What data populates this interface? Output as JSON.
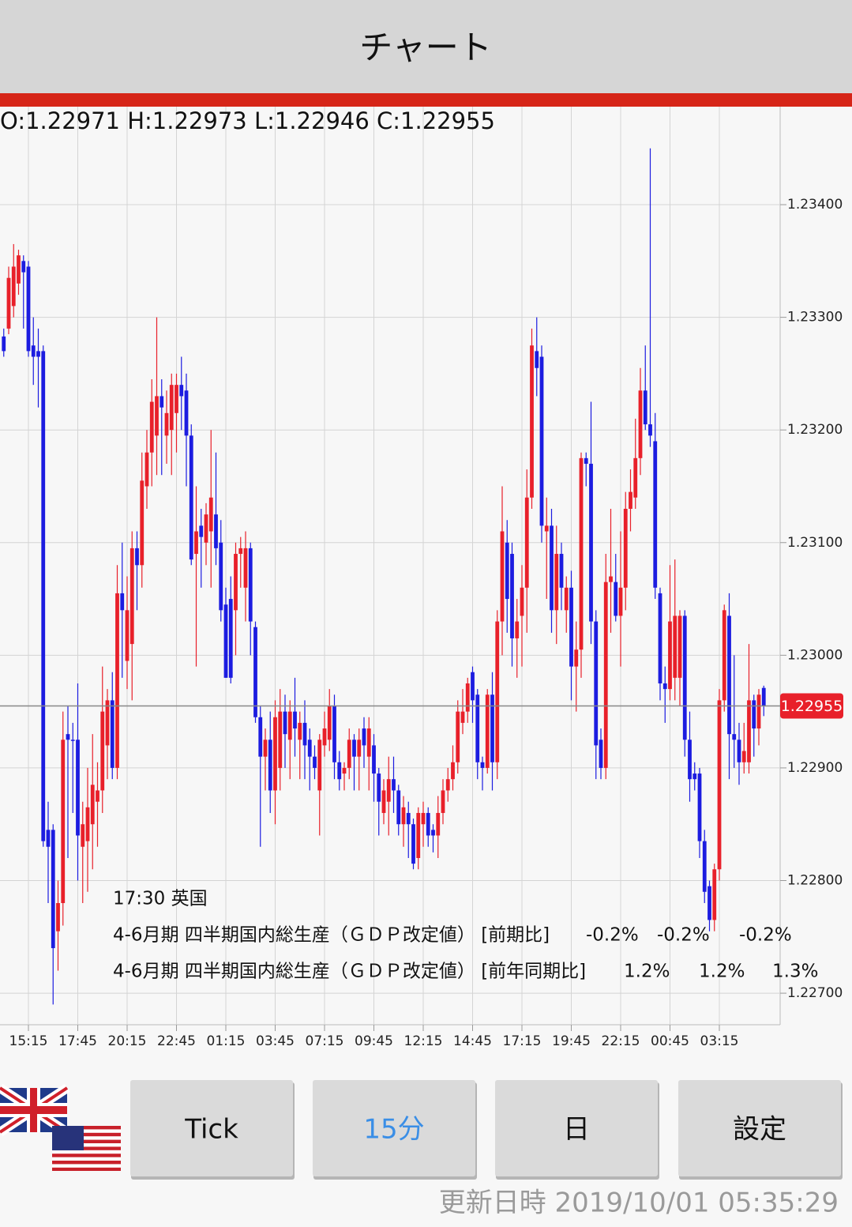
{
  "header": {
    "title": "チャート",
    "ohlc_label": "O:1.22971 H:1.22973 L:1.22946 C:1.22955"
  },
  "chart_data": {
    "type": "candlestick",
    "up_color": "#e8202a",
    "down_color": "#1c1ce0",
    "grid": true,
    "ylim": [
      1.22672,
      1.23487
    ],
    "yticks": [
      {
        "value": 1.227,
        "label": "1.22700"
      },
      {
        "value": 1.228,
        "label": "1.22800"
      },
      {
        "value": 1.229,
        "label": "1.22900"
      },
      {
        "value": 1.23,
        "label": "1.23000"
      },
      {
        "value": 1.231,
        "label": "1.23100"
      },
      {
        "value": 1.232,
        "label": "1.23200"
      },
      {
        "value": 1.233,
        "label": "1.23300"
      },
      {
        "value": 1.234,
        "label": "1.23400"
      }
    ],
    "current_price": 1.22955,
    "categories": [
      null,
      null,
      null,
      null,
      null,
      "15:15",
      null,
      null,
      null,
      null,
      null,
      null,
      null,
      null,
      null,
      "17:45",
      null,
      null,
      null,
      null,
      null,
      null,
      null,
      null,
      null,
      "20:15",
      null,
      null,
      null,
      null,
      null,
      null,
      null,
      null,
      null,
      "22:45",
      null,
      null,
      null,
      null,
      null,
      null,
      null,
      null,
      null,
      "01:15",
      null,
      null,
      null,
      null,
      null,
      null,
      null,
      null,
      null,
      "03:45",
      null,
      null,
      null,
      null,
      null,
      null,
      null,
      null,
      null,
      "07:15",
      null,
      null,
      null,
      null,
      null,
      null,
      null,
      null,
      null,
      "09:45",
      null,
      null,
      null,
      null,
      null,
      null,
      null,
      null,
      null,
      "12:15",
      null,
      null,
      null,
      null,
      null,
      null,
      null,
      null,
      null,
      "14:45",
      null,
      null,
      null,
      null,
      null,
      null,
      null,
      null,
      null,
      "17:15",
      null,
      null,
      null,
      null,
      null,
      null,
      null,
      null,
      null,
      "19:45",
      null,
      null,
      null,
      null,
      null,
      null,
      null,
      null,
      null,
      "22:15",
      null,
      null,
      null,
      null,
      null,
      null,
      null,
      null,
      null,
      "00:45",
      null,
      null,
      null,
      null,
      null,
      null,
      null,
      null,
      null,
      "03:15",
      null,
      null,
      null,
      null,
      null,
      null,
      null,
      null,
      null
    ],
    "open": [
      1.23283,
      1.2329,
      1.2331,
      1.2333,
      1.2335,
      1.23345,
      1.23275,
      1.2327,
      1.2327,
      1.22845,
      1.22845,
      1.22755,
      1.2278,
      1.2293,
      1.22925,
      1.22925,
      1.2283,
      1.22835,
      1.2285,
      1.2287,
      1.2288,
      1.2292,
      1.2296,
      1.229,
      1.23055,
      1.22995,
      1.2301,
      1.23095,
      1.2308,
      1.2315,
      1.2318,
      1.23195,
      1.2323,
      1.23195,
      1.232,
      1.23215,
      1.2324,
      1.23235,
      1.23195,
      1.2309,
      1.23115,
      1.231,
      1.2311,
      1.23125,
      1.231,
      1.23045,
      1.2305,
      1.2304,
      1.2309,
      1.2306,
      1.23095,
      1.23025,
      1.22945,
      1.2291,
      1.22925,
      1.2288,
      1.229,
      1.2295,
      1.22925,
      1.2295,
      1.22925,
      1.2294,
      1.22925,
      1.2291,
      1.2288,
      1.2292,
      1.22925,
      1.22955,
      1.22905,
      1.22895,
      1.229,
      1.22925,
      1.2291,
      1.22935,
      1.2291,
      1.2292,
      1.22895,
      1.2286,
      1.2287,
      1.2289,
      1.2288,
      1.2285,
      1.2286,
      1.2285,
      1.2282,
      1.2285,
      1.2286,
      1.22845,
      1.2284,
      1.2286,
      1.2288,
      1.2289,
      1.22905,
      1.2294,
      1.2295,
      1.22985,
      1.22965,
      1.22905,
      1.229,
      1.22965,
      1.22905,
      1.2303,
      1.231,
      1.2309,
      1.23015,
      1.23035,
      1.2306,
      1.2314,
      1.2327,
      1.23265,
      1.2311,
      1.23115,
      1.2304,
      1.2309,
      1.2304,
      1.2306,
      1.2299,
      1.23005,
      1.23175,
      1.2317,
      1.2303,
      1.22925,
      1.229,
      1.23065,
      1.23065,
      1.23035,
      1.2306,
      1.2313,
      1.2314,
      1.23175,
      1.23235,
      1.23205,
      1.2319,
      1.23055,
      1.22975,
      1.2297,
      1.2298,
      1.2298,
      1.23035,
      1.22925,
      1.22895,
      1.22895,
      1.22835,
      1.22795,
      1.22765,
      1.2281,
      1.2296,
      1.23035,
      1.2293,
      1.22925,
      1.22905,
      1.22905,
      1.2296,
      1.22935,
      1.22971
    ],
    "high": [
      1.2329,
      1.23345,
      1.23365,
      1.2336,
      1.23355,
      1.2335,
      1.233,
      1.2329,
      1.23275,
      1.2287,
      1.2285,
      1.228,
      1.2295,
      1.22955,
      1.2294,
      1.22975,
      1.2287,
      1.229,
      1.2293,
      1.22905,
      1.2299,
      1.2297,
      1.22985,
      1.2308,
      1.231,
      1.2307,
      1.2311,
      1.2311,
      1.2318,
      1.232,
      1.23245,
      1.233,
      1.23245,
      1.23235,
      1.2325,
      1.2325,
      1.23265,
      1.2325,
      1.23205,
      1.2315,
      1.2313,
      1.23135,
      1.232,
      1.2318,
      1.2312,
      1.2306,
      1.2307,
      1.231,
      1.23105,
      1.2311,
      1.231,
      1.2303,
      1.22955,
      1.22935,
      1.2295,
      1.2296,
      1.2297,
      1.22965,
      1.2296,
      1.2298,
      1.2295,
      1.2296,
      1.22935,
      1.2292,
      1.2293,
      1.2295,
      1.2297,
      1.22965,
      1.22915,
      1.22905,
      1.22935,
      1.2293,
      1.22935,
      1.22945,
      1.22945,
      1.2293,
      1.229,
      1.2289,
      1.2291,
      1.2291,
      1.22885,
      1.22875,
      1.2287,
      1.22855,
      1.22865,
      1.2287,
      1.22865,
      1.2285,
      1.22875,
      1.2289,
      1.229,
      1.2292,
      1.2296,
      1.2297,
      1.2298,
      1.2299,
      1.2297,
      1.2291,
      1.2297,
      1.22985,
      1.2304,
      1.2315,
      1.2312,
      1.231,
      1.2305,
      1.2308,
      1.23165,
      1.2329,
      1.233,
      1.23275,
      1.2314,
      1.2313,
      1.23115,
      1.231,
      1.2307,
      1.23075,
      1.2303,
      1.2318,
      1.2318,
      1.23225,
      1.2304,
      1.22935,
      1.2309,
      1.2313,
      1.2309,
      1.2311,
      1.23145,
      1.23165,
      1.2321,
      1.23255,
      1.23275,
      1.2345,
      1.23215,
      1.2306,
      1.2299,
      1.2308,
      1.23085,
      1.2304,
      1.2304,
      1.2295,
      1.22905,
      1.229,
      1.22845,
      1.228,
      1.22815,
      1.2297,
      1.23045,
      1.23055,
      1.23,
      1.2294,
      1.2294,
      1.2301,
      1.22965,
      1.2297,
      1.22973
    ],
    "low": [
      1.23265,
      1.23285,
      1.233,
      1.2332,
      1.2329,
      1.23265,
      1.2324,
      1.2322,
      1.2283,
      1.2278,
      1.2269,
      1.2272,
      1.2276,
      1.2282,
      1.2286,
      1.228,
      1.2278,
      1.2279,
      1.2281,
      1.2283,
      1.2286,
      1.2289,
      1.2289,
      1.2289,
      1.2298,
      1.2297,
      1.2296,
      1.2304,
      1.2306,
      1.2313,
      1.2315,
      1.2316,
      1.2316,
      1.2317,
      1.2316,
      1.2318,
      1.232,
      1.2315,
      1.2308,
      1.2299,
      1.2306,
      1.2308,
      1.2306,
      1.2308,
      1.2303,
      1.2298,
      1.22975,
      1.23,
      1.2306,
      1.2303,
      1.23,
      1.2294,
      1.2283,
      1.2288,
      1.2286,
      1.2285,
      1.2288,
      1.229,
      1.2289,
      1.2291,
      1.2289,
      1.2289,
      1.2288,
      1.2289,
      1.2284,
      1.2291,
      1.22915,
      1.2289,
      1.2288,
      1.2288,
      1.2289,
      1.2288,
      1.2288,
      1.229,
      1.2288,
      1.2287,
      1.2284,
      1.2285,
      1.2284,
      1.2286,
      1.2284,
      1.2283,
      1.2282,
      1.2281,
      1.2281,
      1.2283,
      1.2283,
      1.22825,
      1.2282,
      1.2285,
      1.2287,
      1.2288,
      1.22895,
      1.2293,
      1.2294,
      1.2294,
      1.2289,
      1.2288,
      1.22895,
      1.2288,
      1.2289,
      1.23,
      1.2302,
      1.2299,
      1.2298,
      1.2299,
      1.2302,
      1.2313,
      1.2323,
      1.231,
      1.2305,
      1.2302,
      1.2301,
      1.2304,
      1.2302,
      1.2296,
      1.2295,
      1.2298,
      1.2315,
      1.2301,
      1.2289,
      1.2289,
      1.2289,
      1.2302,
      1.2303,
      1.2299,
      1.2304,
      1.2311,
      1.2313,
      1.2316,
      1.232,
      1.23185,
      1.2305,
      1.2296,
      1.2294,
      1.2296,
      1.2296,
      1.22955,
      1.2291,
      1.2287,
      1.2288,
      1.2282,
      1.2278,
      1.22755,
      1.22755,
      1.228,
      1.2295,
      1.2289,
      1.229,
      1.22885,
      1.22895,
      1.22895,
      1.2291,
      1.2292,
      1.22946
    ],
    "close": [
      1.2327,
      1.23335,
      1.23345,
      1.23355,
      1.2334,
      1.2327,
      1.23265,
      1.23265,
      1.22835,
      1.2283,
      1.2274,
      1.2278,
      1.22925,
      1.22925,
      1.22925,
      1.2284,
      1.2285,
      1.22865,
      1.22885,
      1.2288,
      1.2295,
      1.2296,
      1.229,
      1.23055,
      1.2304,
      1.2304,
      1.23095,
      1.2308,
      1.23155,
      1.2318,
      1.23225,
      1.2323,
      1.2322,
      1.23215,
      1.2324,
      1.2324,
      1.2323,
      1.23195,
      1.23085,
      1.2311,
      1.23105,
      1.23125,
      1.2314,
      1.23095,
      1.2304,
      1.2298,
      1.2298,
      1.2309,
      1.23095,
      1.23095,
      1.2303,
      1.22945,
      1.2291,
      1.22925,
      1.2288,
      1.22945,
      1.2295,
      1.2293,
      1.2295,
      1.22935,
      1.2294,
      1.2292,
      1.2291,
      1.229,
      1.22925,
      1.22935,
      1.22955,
      1.22905,
      1.2289,
      1.229,
      1.22925,
      1.2291,
      1.22925,
      1.2292,
      1.22935,
      1.22895,
      1.2287,
      1.2288,
      1.2289,
      1.2288,
      1.2285,
      1.22865,
      1.2285,
      1.22815,
      1.2286,
      1.2286,
      1.2284,
      1.2284,
      1.2286,
      1.2288,
      1.2289,
      1.22905,
      1.2295,
      1.2295,
      1.22975,
      1.2296,
      1.22905,
      1.229,
      1.22965,
      1.22905,
      1.2303,
      1.2311,
      1.2305,
      1.23015,
      1.2303,
      1.2306,
      1.2314,
      1.23275,
      1.23255,
      1.23115,
      1.23115,
      1.2304,
      1.2309,
      1.2306,
      1.2306,
      1.2299,
      1.23005,
      1.23175,
      1.2317,
      1.2303,
      1.2292,
      1.229,
      1.23065,
      1.2307,
      1.23035,
      1.2306,
      1.2313,
      1.23145,
      1.23175,
      1.23235,
      1.23205,
      1.23195,
      1.2306,
      1.22975,
      1.2297,
      1.2303,
      1.23035,
      1.23035,
      1.22925,
      1.2289,
      1.2289,
      1.22835,
      1.2279,
      1.22765,
      1.2281,
      1.2296,
      1.2304,
      1.2293,
      1.22925,
      1.22905,
      1.22915,
      1.2296,
      1.22935,
      1.22965,
      1.22955
    ],
    "annotations": {
      "heading": "17:30 英国",
      "rows": [
        {
          "text": "4-6月期 四半期国内総生産（ＧＤＰ改定値） [前期比]",
          "values": [
            "-0.2%",
            "-0.2%",
            "-0.2%"
          ]
        },
        {
          "text": "4-6月期 四半期国内総生産（ＧＤＰ改定値） [前年同期比]",
          "values": [
            "1.2%",
            "1.2%",
            "1.3%"
          ]
        }
      ]
    }
  },
  "buttons": [
    "Tick",
    "15分",
    "日",
    "設定"
  ],
  "footer": "更新日時 2019/10/01 05:35:29"
}
